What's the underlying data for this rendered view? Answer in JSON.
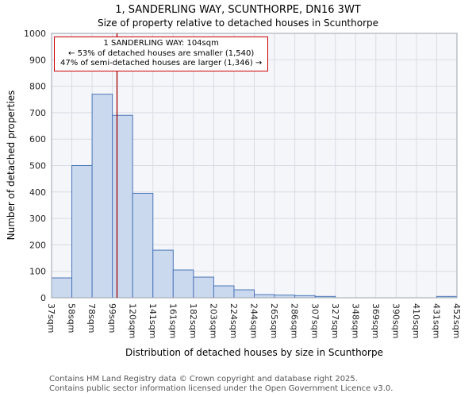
{
  "colors": {
    "bar_fill": "#cbd9ef",
    "bar_stroke": "#4a76b8",
    "marker": "#a00000",
    "annotation_border": "#cc0000",
    "grid": "#d8dbe4",
    "plot_bg": "#f5f6fa",
    "plot_border": "#9aa0ab",
    "tick_text": "#222222",
    "footer_text": "#555555"
  },
  "footer": {
    "line1": "Contains HM Land Registry data © Crown copyright and database right 2025.",
    "line2": "Contains public sector information licensed under the Open Government Licence v3.0."
  },
  "chart_data": {
    "type": "bar",
    "title": "1, SANDERLING WAY, SCUNTHORPE, DN16 3WT",
    "subtitle": "Size of property relative to detached houses in Scunthorpe",
    "xlabel": "Distribution of detached houses by size in Scunthorpe",
    "ylabel": "Number of detached properties",
    "ylim": [
      0,
      1000
    ],
    "ytick_step": 100,
    "grid": true,
    "categories": [
      "37sqm",
      "58sqm",
      "78sqm",
      "99sqm",
      "120sqm",
      "141sqm",
      "161sqm",
      "182sqm",
      "203sqm",
      "224sqm",
      "244sqm",
      "265sqm",
      "286sqm",
      "307sqm",
      "327sqm",
      "348sqm",
      "369sqm",
      "390sqm",
      "410sqm",
      "431sqm",
      "452sqm"
    ],
    "values": [
      75,
      500,
      770,
      690,
      395,
      180,
      105,
      78,
      45,
      30,
      12,
      10,
      8,
      5,
      0,
      0,
      0,
      0,
      0,
      5
    ],
    "marker": {
      "label": "1 SANDERLING WAY",
      "value_sqm": 104,
      "axis_min_sqm": 37,
      "axis_max_sqm": 452
    },
    "annotation": [
      "1 SANDERLING WAY: 104sqm",
      "← 53% of detached houses are smaller (1,540)",
      "47% of semi-detached houses are larger (1,346) →"
    ]
  }
}
